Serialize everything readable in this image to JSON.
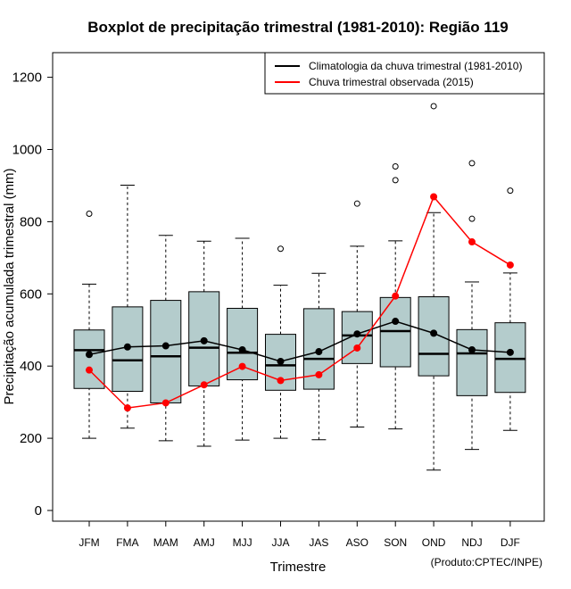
{
  "chart_data": {
    "type": "boxplot",
    "title": "Boxplot de precipitação trimestral (1981-2010): Região 119",
    "xlabel": "Trimestre",
    "ylabel": "Precipitação acumulada trimestral (mm)",
    "caption": "(Produto:CPTEC/INPE)",
    "ylim": [
      -60,
      1270
    ],
    "yticks": [
      0,
      200,
      400,
      600,
      800,
      1000,
      1200
    ],
    "categories": [
      "JFM",
      "FMA",
      "MAM",
      "AMJ",
      "MJJ",
      "JJA",
      "JAS",
      "ASO",
      "SON",
      "OND",
      "NDJ",
      "DJF"
    ],
    "boxes": [
      {
        "whisker_low": 200,
        "q1": 338,
        "median": 444,
        "q3": 500,
        "whisker_high": 627,
        "outliers": [
          822
        ]
      },
      {
        "whisker_low": 228,
        "q1": 330,
        "median": 416,
        "q3": 564,
        "whisker_high": 901,
        "outliers": []
      },
      {
        "whisker_low": 193,
        "q1": 298,
        "median": 427,
        "q3": 582,
        "whisker_high": 762,
        "outliers": []
      },
      {
        "whisker_low": 178,
        "q1": 345,
        "median": 451,
        "q3": 606,
        "whisker_high": 746,
        "outliers": []
      },
      {
        "whisker_low": 195,
        "q1": 362,
        "median": 437,
        "q3": 560,
        "whisker_high": 754,
        "outliers": []
      },
      {
        "whisker_low": 200,
        "q1": 333,
        "median": 402,
        "q3": 488,
        "whisker_high": 624,
        "outliers": [
          725
        ]
      },
      {
        "whisker_low": 196,
        "q1": 336,
        "median": 420,
        "q3": 559,
        "whisker_high": 657,
        "outliers": []
      },
      {
        "whisker_low": 231,
        "q1": 407,
        "median": 485,
        "q3": 551,
        "whisker_high": 732,
        "outliers": [
          850
        ]
      },
      {
        "whisker_low": 226,
        "q1": 398,
        "median": 497,
        "q3": 590,
        "whisker_high": 747,
        "outliers": [
          915,
          953
        ]
      },
      {
        "whisker_low": 112,
        "q1": 373,
        "median": 434,
        "q3": 592,
        "whisker_high": 825,
        "outliers": [
          1120
        ]
      },
      {
        "whisker_low": 169,
        "q1": 318,
        "median": 435,
        "q3": 501,
        "whisker_high": 633,
        "outliers": [
          808,
          962
        ]
      },
      {
        "whisker_low": 222,
        "q1": 327,
        "median": 420,
        "q3": 520,
        "whisker_high": 658,
        "outliers": [
          886
        ]
      }
    ],
    "series": [
      {
        "name": "Climatologia da chuva trimestral (1981-2010)",
        "color": "#000000",
        "values": [
          432,
          453,
          456,
          470,
          445,
          413,
          440,
          489,
          524,
          491,
          445,
          438
        ]
      },
      {
        "name": "Chuva trimestral observada (2015)",
        "color": "#ff0000",
        "values": [
          389,
          284,
          298,
          348,
          399,
          360,
          376,
          450,
          594,
          869,
          744,
          680
        ]
      }
    ],
    "box_fill": "#b4cccc",
    "legend_position": "top-right"
  }
}
